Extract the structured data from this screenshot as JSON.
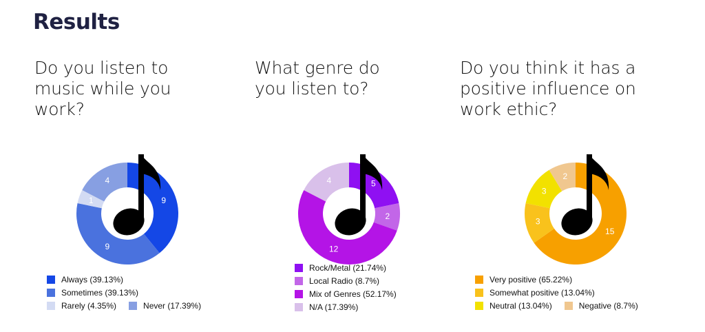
{
  "page": {
    "title": "Results"
  },
  "chart_data": [
    {
      "type": "pie",
      "title": "Do you listen to music while you work?",
      "slices": [
        {
          "name": "Always",
          "value": 9,
          "legend_label": "Always (39.13%)",
          "color": "#1447e6"
        },
        {
          "name": "Sometimes",
          "value": 9,
          "legend_label": "Sometimes (39.13%)",
          "color": "#4a72de"
        },
        {
          "name": "Rarely",
          "value": 1,
          "legend_label": "Rarely (4.35%)",
          "color": "#d3dbf3"
        },
        {
          "name": "Never",
          "value": 4,
          "legend_label": "Never (17.39%)",
          "color": "#879fe2"
        }
      ]
    },
    {
      "type": "pie",
      "title": "What genre do you listen to?",
      "slices": [
        {
          "name": "Rock/Metal",
          "value": 5,
          "legend_label": "Rock/Metal (21.74%)",
          "color": "#8f10f2"
        },
        {
          "name": "Local Radio",
          "value": 2,
          "legend_label": "Local Radio (8.7%)",
          "color": "#c266e8"
        },
        {
          "name": "Mix of Genres",
          "value": 12,
          "legend_label": "Mix of Genres (52.17%)",
          "color": "#b414e6"
        },
        {
          "name": "N/A",
          "value": 4,
          "legend_label": "N/A (17.39%)",
          "color": "#d9c0ea"
        }
      ]
    },
    {
      "type": "pie",
      "title": "Do you think it has a positive influence on work ethic?",
      "slices": [
        {
          "name": "Very positive",
          "value": 15,
          "legend_label": "Very positive (65.22%)",
          "color": "#f7a000"
        },
        {
          "name": "Somewhat positive",
          "value": 3,
          "legend_label": "Somewhat positive (13.04%)",
          "color": "#f9c21c"
        },
        {
          "name": "Neutral",
          "value": 3,
          "legend_label": "Neutral (13.04%)",
          "color": "#f2e100"
        },
        {
          "name": "Negative",
          "value": 2,
          "legend_label": "Negative (8.7%)",
          "color": "#f0c78f"
        }
      ]
    }
  ]
}
